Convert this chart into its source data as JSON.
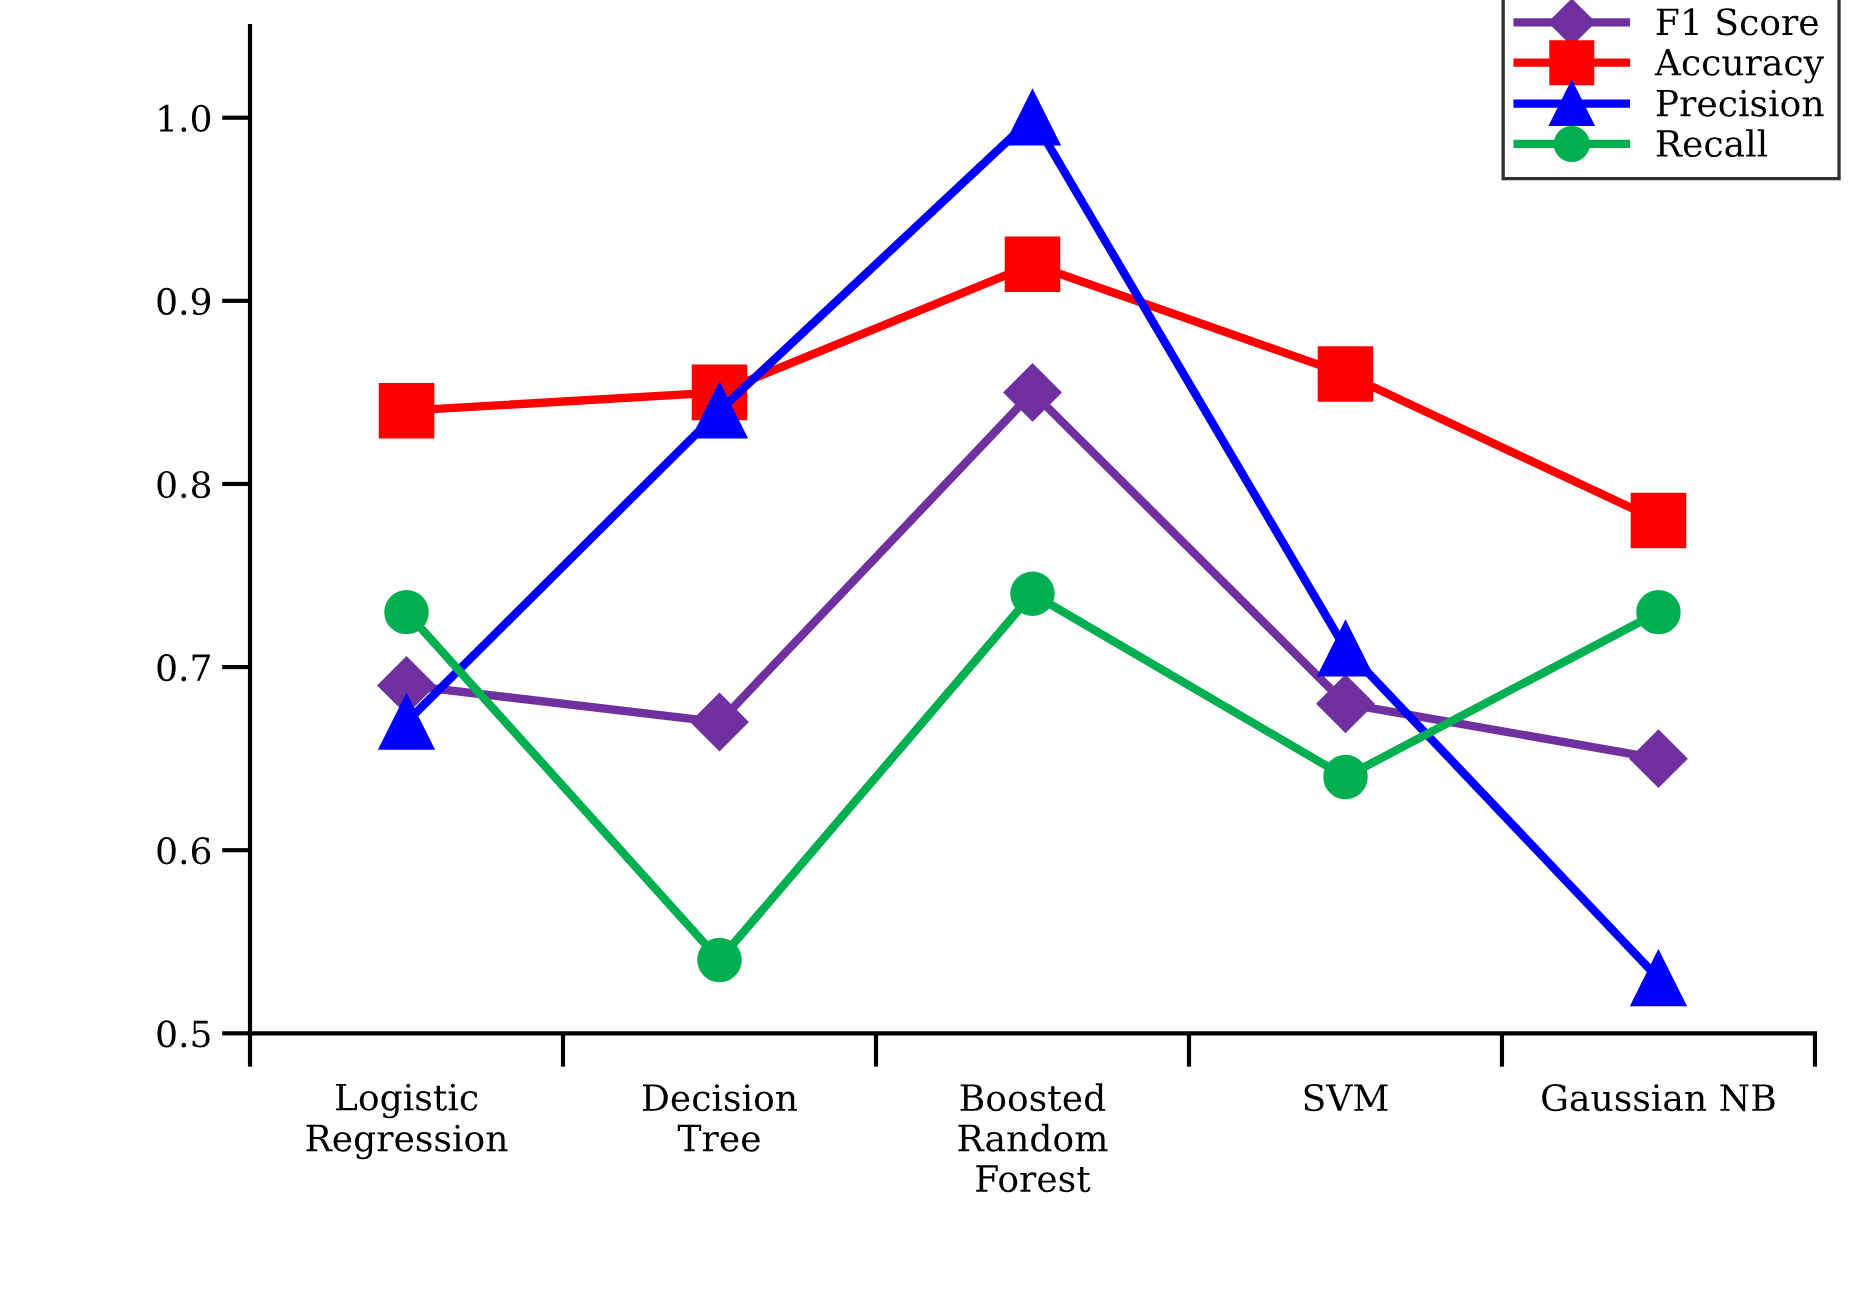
{
  "chart_data": {
    "type": "line",
    "categories": [
      "Logistic\nRegression",
      "Decision\nTree",
      "Boosted\nRandom\nForest",
      "SVM",
      "Gaussian NB"
    ],
    "series": [
      {
        "name": "F1 Score",
        "color": "#7030a0",
        "marker": "diamond",
        "values": [
          0.69,
          0.67,
          0.85,
          0.68,
          0.65
        ]
      },
      {
        "name": "Accuracy",
        "color": "#ff0000",
        "marker": "square",
        "values": [
          0.84,
          0.85,
          0.92,
          0.86,
          0.78
        ]
      },
      {
        "name": "Precision",
        "color": "#0000ff",
        "marker": "triangle",
        "values": [
          0.67,
          0.84,
          1.0,
          0.71,
          0.53
        ]
      },
      {
        "name": "Recall",
        "color": "#00b050",
        "marker": "circle",
        "values": [
          0.73,
          0.54,
          0.74,
          0.64,
          0.73
        ]
      }
    ],
    "ylim": [
      0.5,
      1.05
    ],
    "yticks": [
      0.5,
      0.6,
      0.7,
      0.8,
      0.9,
      {
        "value": 1.0,
        "label": "1.0"
      }
    ],
    "grid": false,
    "legend": "top right",
    "line_style": "solid"
  }
}
